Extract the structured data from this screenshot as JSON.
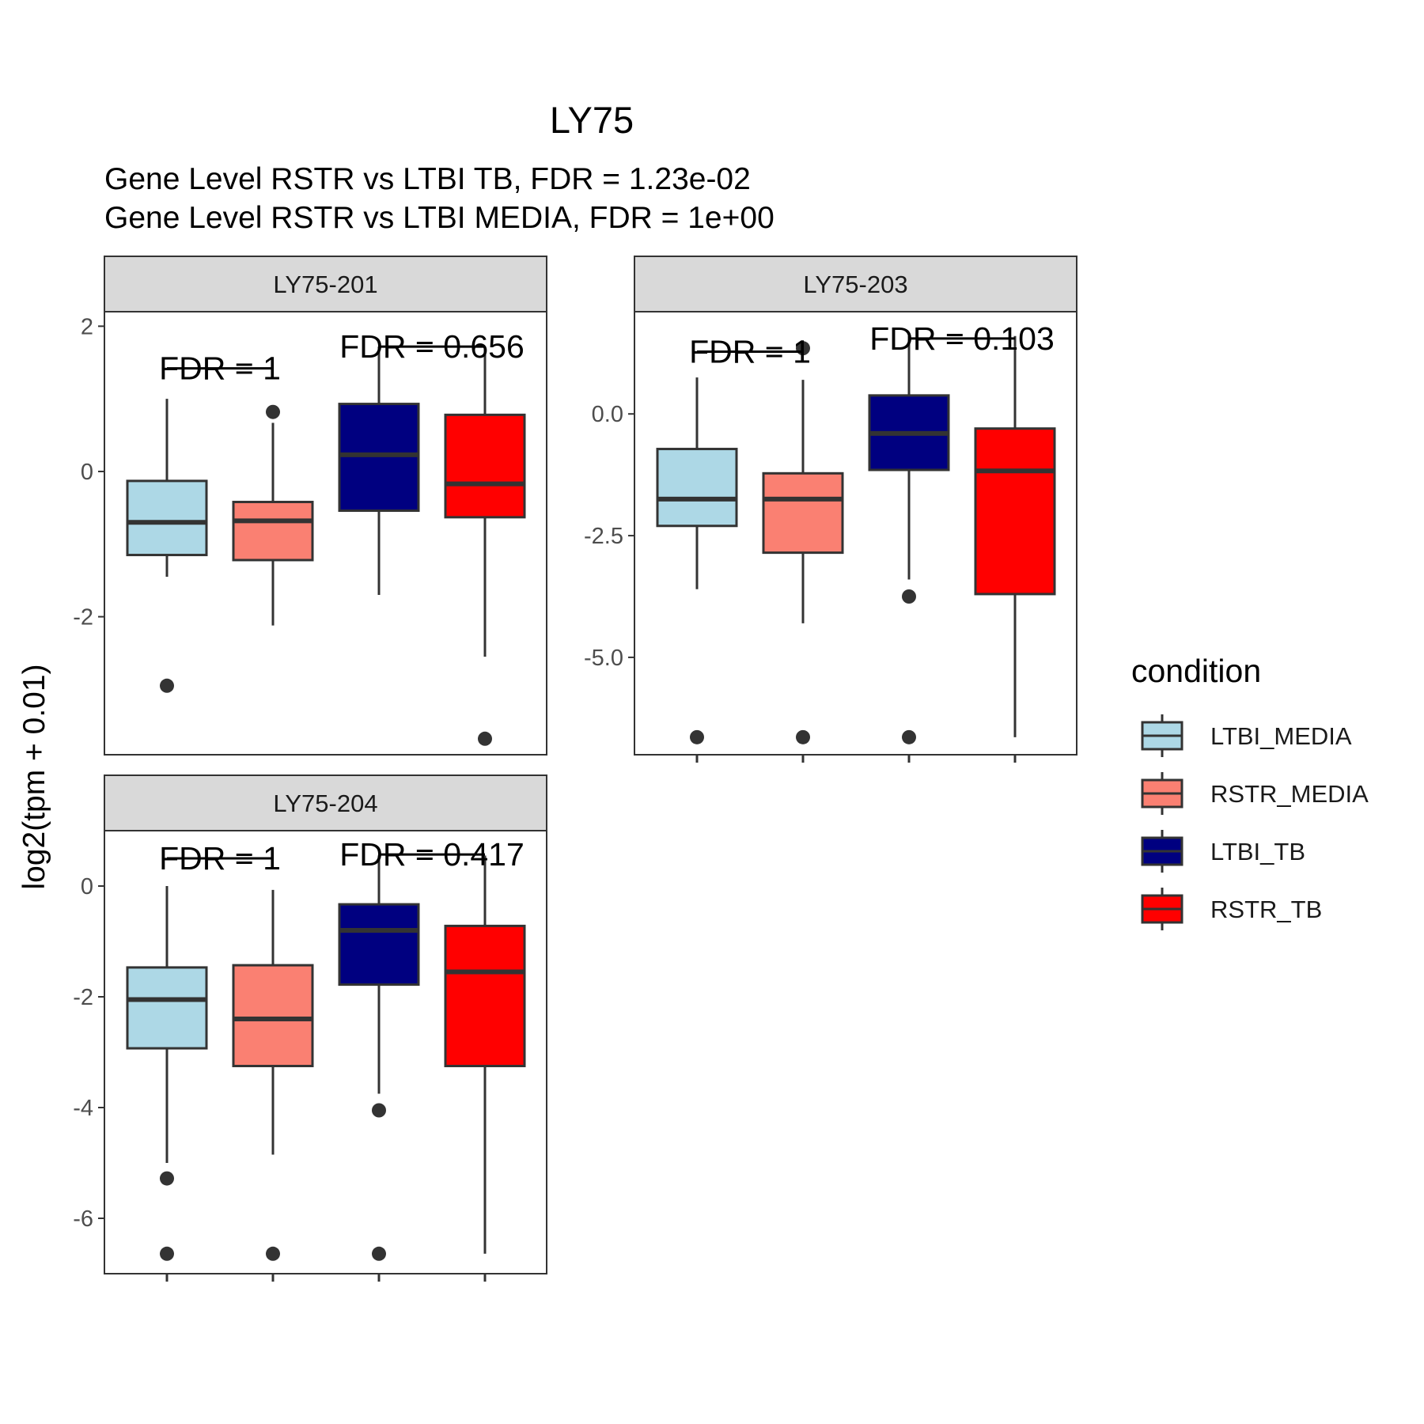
{
  "chart_data": {
    "type": "boxplot",
    "title": "LY75",
    "subtitle_lines": [
      "Gene Level RSTR vs LTBI TB, FDR =  1.23e-02",
      "Gene Level RSTR vs LTBI MEDIA, FDR =  1e+00"
    ],
    "ylabel": "log2(tpm + 0.01)",
    "xlabel": "",
    "legend": {
      "title": "condition",
      "position": "right",
      "entries": [
        {
          "label": "LTBI_MEDIA",
          "color": "#ADD8E6"
        },
        {
          "label": "RSTR_MEDIA",
          "color": "#FA8072"
        },
        {
          "label": "LTBI_TB",
          "color": "#000080"
        },
        {
          "label": "RSTR_TB",
          "color": "#FF0000"
        }
      ]
    },
    "categories": [
      "LTBI_MEDIA",
      "RSTR_MEDIA",
      "LTBI_TB",
      "RSTR_TB"
    ],
    "panels": [
      {
        "name": "LY75-201",
        "ylim": [
          -3.9,
          2.2
        ],
        "yticks": [
          {
            "v": 2,
            "label": "2"
          },
          {
            "v": 0,
            "label": "0"
          },
          {
            "v": -2,
            "label": "-2"
          }
        ],
        "boxes": [
          {
            "q1": -1.15,
            "median": -0.7,
            "q3": -0.13,
            "lower": -1.45,
            "upper": 1.0,
            "outliers": [
              -2.95
            ]
          },
          {
            "q1": -1.22,
            "median": -0.68,
            "q3": -0.42,
            "lower": -2.12,
            "upper": 0.67,
            "outliers": [
              0.82
            ]
          },
          {
            "q1": -0.54,
            "median": 0.23,
            "q3": 0.93,
            "lower": -1.7,
            "upper": 1.72,
            "outliers": []
          },
          {
            "q1": -0.63,
            "median": -0.17,
            "q3": 0.78,
            "lower": -2.55,
            "upper": 1.72,
            "outliers": [
              -3.68
            ]
          }
        ],
        "annotations": [
          {
            "text": "FDR =  1",
            "from": 0,
            "to": 1,
            "y": 1.42
          },
          {
            "text": "FDR =  0.656",
            "from": 2,
            "to": 3,
            "y": 1.72
          }
        ]
      },
      {
        "name": "LY75-203",
        "ylim": [
          -7.0,
          2.1
        ],
        "yticks": [
          {
            "v": 0,
            "label": "0.0"
          },
          {
            "v": -2.5,
            "label": "-2.5"
          },
          {
            "v": -5,
            "label": "-5.0"
          }
        ],
        "boxes": [
          {
            "q1": -2.3,
            "median": -1.75,
            "q3": -0.72,
            "lower": -3.6,
            "upper": 0.75,
            "outliers": [
              -6.64
            ]
          },
          {
            "q1": -2.85,
            "median": -1.75,
            "q3": -1.22,
            "lower": -4.3,
            "upper": 0.7,
            "outliers": [
              1.35,
              -6.64
            ]
          },
          {
            "q1": -1.15,
            "median": -0.4,
            "q3": 0.38,
            "lower": -3.4,
            "upper": 1.6,
            "outliers": [
              -3.75,
              -6.64
            ]
          },
          {
            "q1": -3.7,
            "median": -1.17,
            "q3": -0.3,
            "lower": -6.64,
            "upper": 1.6,
            "outliers": []
          }
        ],
        "annotations": [
          {
            "text": "FDR =  1",
            "from": 0,
            "to": 1,
            "y": 1.28
          },
          {
            "text": "FDR =  0.103",
            "from": 2,
            "to": 3,
            "y": 1.55
          }
        ]
      },
      {
        "name": "LY75-204",
        "ylim": [
          -7.0,
          1.0
        ],
        "yticks": [
          {
            "v": 0,
            "label": "0"
          },
          {
            "v": -2,
            "label": "-2"
          },
          {
            "v": -4,
            "label": "-4"
          },
          {
            "v": -6,
            "label": "-6"
          }
        ],
        "boxes": [
          {
            "q1": -2.93,
            "median": -2.05,
            "q3": -1.47,
            "lower": -5.0,
            "upper": 0.0,
            "outliers": [
              -5.28,
              -6.64
            ]
          },
          {
            "q1": -3.25,
            "median": -2.4,
            "q3": -1.43,
            "lower": -4.85,
            "upper": -0.07,
            "outliers": [
              -6.64
            ]
          },
          {
            "q1": -1.78,
            "median": -0.8,
            "q3": -0.33,
            "lower": -3.75,
            "upper": 0.55,
            "outliers": [
              -4.05,
              -6.64
            ]
          },
          {
            "q1": -3.25,
            "median": -1.55,
            "q3": -0.72,
            "lower": -6.64,
            "upper": 0.55,
            "outliers": []
          }
        ],
        "annotations": [
          {
            "text": "FDR =  1",
            "from": 0,
            "to": 1,
            "y": 0.5
          },
          {
            "text": "FDR =  0.417",
            "from": 2,
            "to": 3,
            "y": 0.57
          }
        ]
      }
    ]
  }
}
